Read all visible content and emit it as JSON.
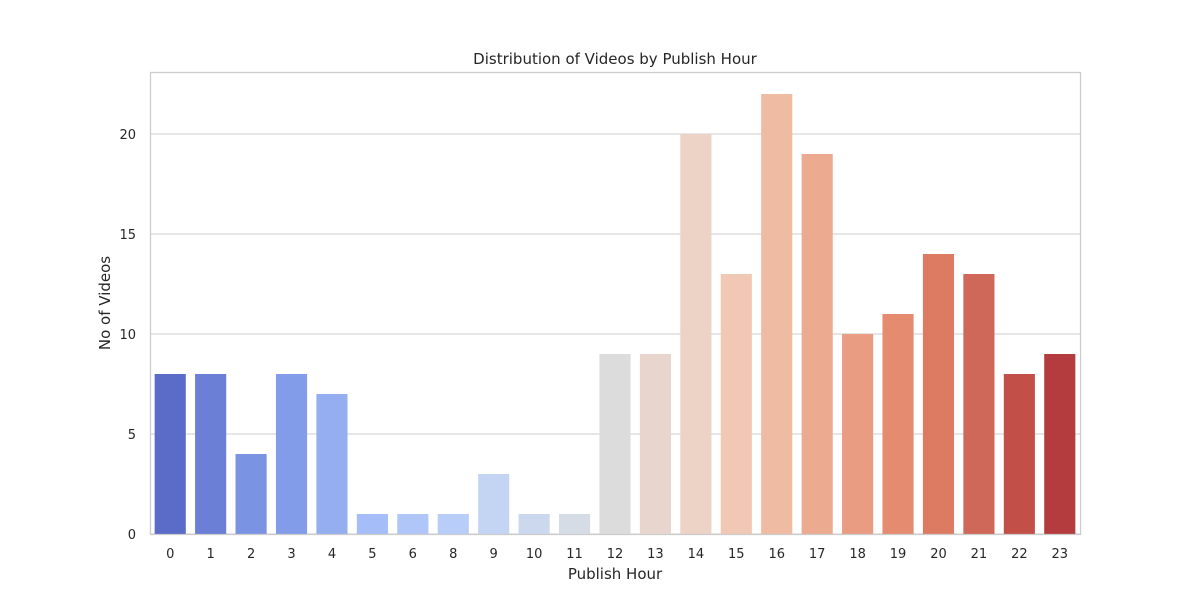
{
  "chart_data": {
    "type": "bar",
    "title": "Distribution of Videos by Publish Hour",
    "xlabel": "Publish Hour",
    "ylabel": "No of Videos",
    "categories": [
      "0",
      "1",
      "2",
      "3",
      "4",
      "5",
      "6",
      "8",
      "9",
      "10",
      "11",
      "12",
      "13",
      "14",
      "15",
      "16",
      "17",
      "18",
      "19",
      "20",
      "21",
      "22",
      "23"
    ],
    "values": [
      8,
      8,
      4,
      8,
      7,
      1,
      1,
      1,
      3,
      1,
      1,
      9,
      9,
      20,
      13,
      22,
      19,
      10,
      11,
      14,
      13,
      8,
      9
    ],
    "ylim": [
      0,
      23.1
    ],
    "yticks": [
      0,
      5,
      10,
      15,
      20
    ],
    "grid": "horizontal",
    "palette": "coolwarm",
    "colors": [
      "#5a6bc8",
      "#6b7fd7",
      "#7b93e3",
      "#839cea",
      "#94aef0",
      "#a5befa",
      "#b0c6f9",
      "#b8cdf7",
      "#c4d5f3",
      "#cbd8ee",
      "#d6dce6",
      "#dddcdc",
      "#e8d6ce",
      "#ecd3c5",
      "#f0c8b4",
      "#efbba2",
      "#ecab91",
      "#e99c82",
      "#e48b70",
      "#dc7b62",
      "#d0685a",
      "#c25048",
      "#b43c3e"
    ]
  }
}
